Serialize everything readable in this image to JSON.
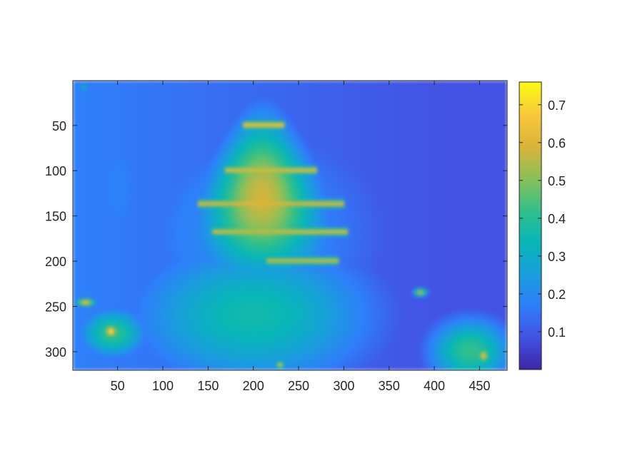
{
  "chart_data": {
    "type": "heatmap",
    "title": "",
    "xlabel": "",
    "ylabel": "",
    "x_range": [
      1,
      480
    ],
    "y_range": [
      1,
      320
    ],
    "y_axis_direction": "reversed",
    "x_ticks": [
      50,
      100,
      150,
      200,
      250,
      300,
      350,
      400,
      450
    ],
    "x_tick_labels": [
      "50",
      "100",
      "150",
      "200",
      "250",
      "300",
      "350",
      "400",
      "450"
    ],
    "y_ticks": [
      50,
      100,
      150,
      200,
      250,
      300
    ],
    "y_tick_labels": [
      "50",
      "100",
      "150",
      "200",
      "250",
      "300"
    ],
    "colormap": "parula",
    "colormap_stops": [
      "#3e26a8",
      "#4354e5",
      "#2f7ffb",
      "#1a9fdd",
      "#08b7b8",
      "#33c08a",
      "#8cc059",
      "#dcb43a",
      "#fac93b",
      "#f9fb15"
    ],
    "colorbar": {
      "range": [
        0.0,
        0.76
      ],
      "ticks": [
        0.1,
        0.2,
        0.3,
        0.4,
        0.5,
        0.6,
        0.7
      ],
      "tick_labels": [
        "0.1",
        "0.2",
        "0.3",
        "0.4",
        "0.5",
        "0.6",
        "0.7"
      ],
      "location": "right"
    },
    "background_value": 0.08,
    "features": [
      {
        "shape": "dome",
        "x": 210,
        "y": 130,
        "rx": 90,
        "ry": 95,
        "value": 0.58
      },
      {
        "shape": "blob",
        "x": 200,
        "y": 260,
        "rx": 150,
        "ry": 90,
        "value": 0.36
      },
      {
        "shape": "blob",
        "x": 200,
        "y": 170,
        "rx": 170,
        "ry": 150,
        "value": 0.22
      },
      {
        "shape": "blob",
        "x": 440,
        "y": 300,
        "rx": 50,
        "ry": 40,
        "value": 0.42
      },
      {
        "shape": "blob",
        "x": 45,
        "y": 280,
        "rx": 40,
        "ry": 30,
        "value": 0.42
      },
      {
        "shape": "blob",
        "x": 50,
        "y": 120,
        "rx": 55,
        "ry": 110,
        "value": 0.18
      },
      {
        "shape": "spot",
        "x": 43,
        "y": 278,
        "rx": 10,
        "ry": 10,
        "value": 0.72
      },
      {
        "shape": "spot",
        "x": 15,
        "y": 246,
        "rx": 14,
        "ry": 6,
        "value": 0.66
      },
      {
        "shape": "spot",
        "x": 230,
        "y": 315,
        "rx": 6,
        "ry": 5,
        "value": 0.7
      },
      {
        "shape": "spot",
        "x": 455,
        "y": 305,
        "rx": 8,
        "ry": 10,
        "value": 0.66
      },
      {
        "shape": "spot",
        "x": 385,
        "y": 235,
        "rx": 10,
        "ry": 6,
        "value": 0.58
      },
      {
        "shape": "spot",
        "x": 13,
        "y": 8,
        "rx": 8,
        "ry": 8,
        "value": 0.3
      }
    ],
    "bands": [
      {
        "y": 137,
        "x_from": 140,
        "x_to": 300,
        "value": 0.62
      },
      {
        "y": 168,
        "x_from": 155,
        "x_to": 305,
        "value": 0.6
      },
      {
        "y": 200,
        "x_from": 215,
        "x_to": 295,
        "value": 0.58
      },
      {
        "y": 50,
        "x_from": 190,
        "x_to": 235,
        "value": 0.66
      },
      {
        "y": 100,
        "x_from": 170,
        "x_to": 270,
        "value": 0.62
      }
    ]
  }
}
